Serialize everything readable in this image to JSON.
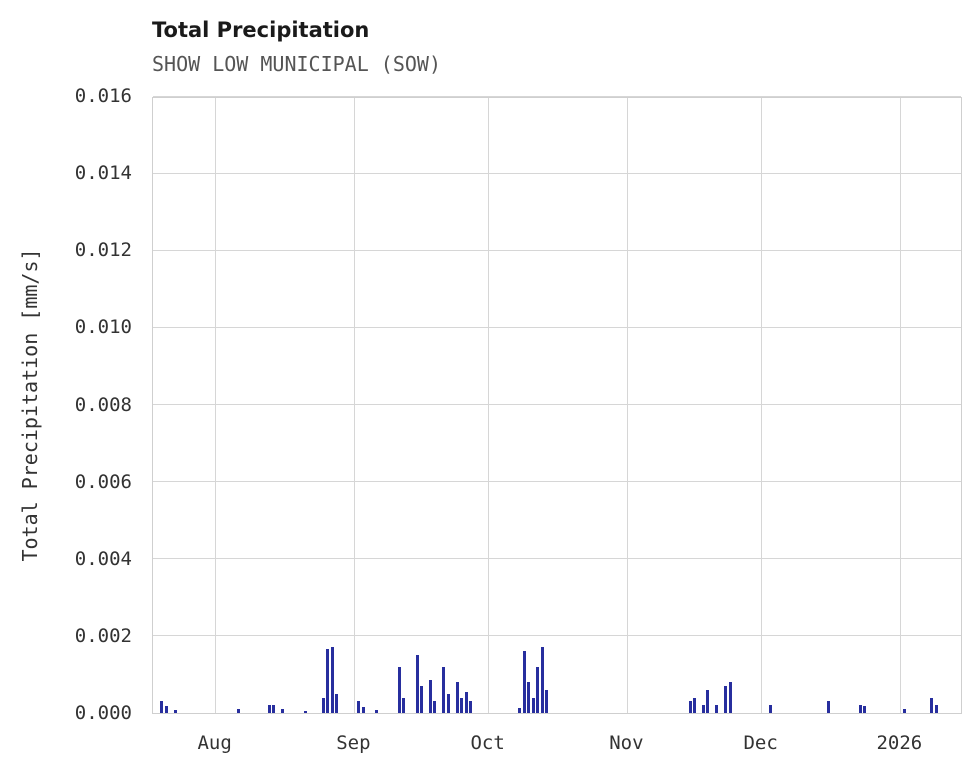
{
  "chart_data": {
    "type": "bar",
    "title": "Total Precipitation",
    "subtitle": "SHOW LOW MUNICIPAL (SOW)",
    "ylabel": "Total Precipitation [mm/s]",
    "xlabel": "",
    "ylim": [
      0,
      0.016
    ],
    "grid": true,
    "legend": "none",
    "bar_color": "#272e9e",
    "grid_color": "#d6d6d6",
    "text_color": "#333333",
    "subtitle_color": "#555555",
    "x_domain": [
      "2025-07-18",
      "2026-01-15"
    ],
    "y_ticks": [
      0.0,
      0.002,
      0.004,
      0.006,
      0.008,
      0.01,
      0.012,
      0.014,
      0.016
    ],
    "y_tick_labels": [
      "0.000",
      "0.002",
      "0.004",
      "0.006",
      "0.008",
      "0.010",
      "0.012",
      "0.014",
      "0.016"
    ],
    "x_ticks": [
      {
        "date": "2025-08-01",
        "label": "Aug"
      },
      {
        "date": "2025-09-01",
        "label": "Sep"
      },
      {
        "date": "2025-10-01",
        "label": "Oct"
      },
      {
        "date": "2025-11-01",
        "label": "Nov"
      },
      {
        "date": "2025-12-01",
        "label": "Dec"
      },
      {
        "date": "2026-01-01",
        "label": "2026"
      }
    ],
    "points": [
      {
        "date": "2025-07-20",
        "value": 0.0003
      },
      {
        "date": "2025-07-21",
        "value": 0.00018
      },
      {
        "date": "2025-07-23",
        "value": 8e-05
      },
      {
        "date": "2025-08-06",
        "value": 0.0001
      },
      {
        "date": "2025-08-13",
        "value": 0.0002
      },
      {
        "date": "2025-08-14",
        "value": 0.00022
      },
      {
        "date": "2025-08-16",
        "value": 0.0001
      },
      {
        "date": "2025-08-21",
        "value": 6e-05
      },
      {
        "date": "2025-08-25",
        "value": 0.0004
      },
      {
        "date": "2025-08-26",
        "value": 0.00165
      },
      {
        "date": "2025-08-27",
        "value": 0.0017
      },
      {
        "date": "2025-08-28",
        "value": 0.0005
      },
      {
        "date": "2025-09-02",
        "value": 0.0003
      },
      {
        "date": "2025-09-03",
        "value": 0.00015
      },
      {
        "date": "2025-09-06",
        "value": 8e-05
      },
      {
        "date": "2025-09-11",
        "value": 0.0012
      },
      {
        "date": "2025-09-12",
        "value": 0.0004
      },
      {
        "date": "2025-09-15",
        "value": 0.0015
      },
      {
        "date": "2025-09-16",
        "value": 0.0007
      },
      {
        "date": "2025-09-18",
        "value": 0.00085
      },
      {
        "date": "2025-09-19",
        "value": 0.0003
      },
      {
        "date": "2025-09-21",
        "value": 0.0012
      },
      {
        "date": "2025-09-22",
        "value": 0.0005
      },
      {
        "date": "2025-09-24",
        "value": 0.0008
      },
      {
        "date": "2025-09-25",
        "value": 0.0004
      },
      {
        "date": "2025-09-26",
        "value": 0.00055
      },
      {
        "date": "2025-09-27",
        "value": 0.0003
      },
      {
        "date": "2025-10-08",
        "value": 0.00012
      },
      {
        "date": "2025-10-09",
        "value": 0.0016
      },
      {
        "date": "2025-10-10",
        "value": 0.0008
      },
      {
        "date": "2025-10-11",
        "value": 0.0004
      },
      {
        "date": "2025-10-12",
        "value": 0.0012
      },
      {
        "date": "2025-10-13",
        "value": 0.0017
      },
      {
        "date": "2025-10-14",
        "value": 0.0006
      },
      {
        "date": "2025-11-15",
        "value": 0.0003
      },
      {
        "date": "2025-11-16",
        "value": 0.0004
      },
      {
        "date": "2025-11-18",
        "value": 0.0002
      },
      {
        "date": "2025-11-19",
        "value": 0.0006
      },
      {
        "date": "2025-11-21",
        "value": 0.0002
      },
      {
        "date": "2025-11-23",
        "value": 0.0007
      },
      {
        "date": "2025-11-24",
        "value": 0.0008
      },
      {
        "date": "2025-12-03",
        "value": 0.0002
      },
      {
        "date": "2025-12-16",
        "value": 0.0003
      },
      {
        "date": "2025-12-23",
        "value": 0.0002
      },
      {
        "date": "2025-12-24",
        "value": 0.00018
      },
      {
        "date": "2026-01-02",
        "value": 0.0001
      },
      {
        "date": "2026-01-08",
        "value": 0.0004
      },
      {
        "date": "2026-01-09",
        "value": 0.0002
      }
    ]
  }
}
